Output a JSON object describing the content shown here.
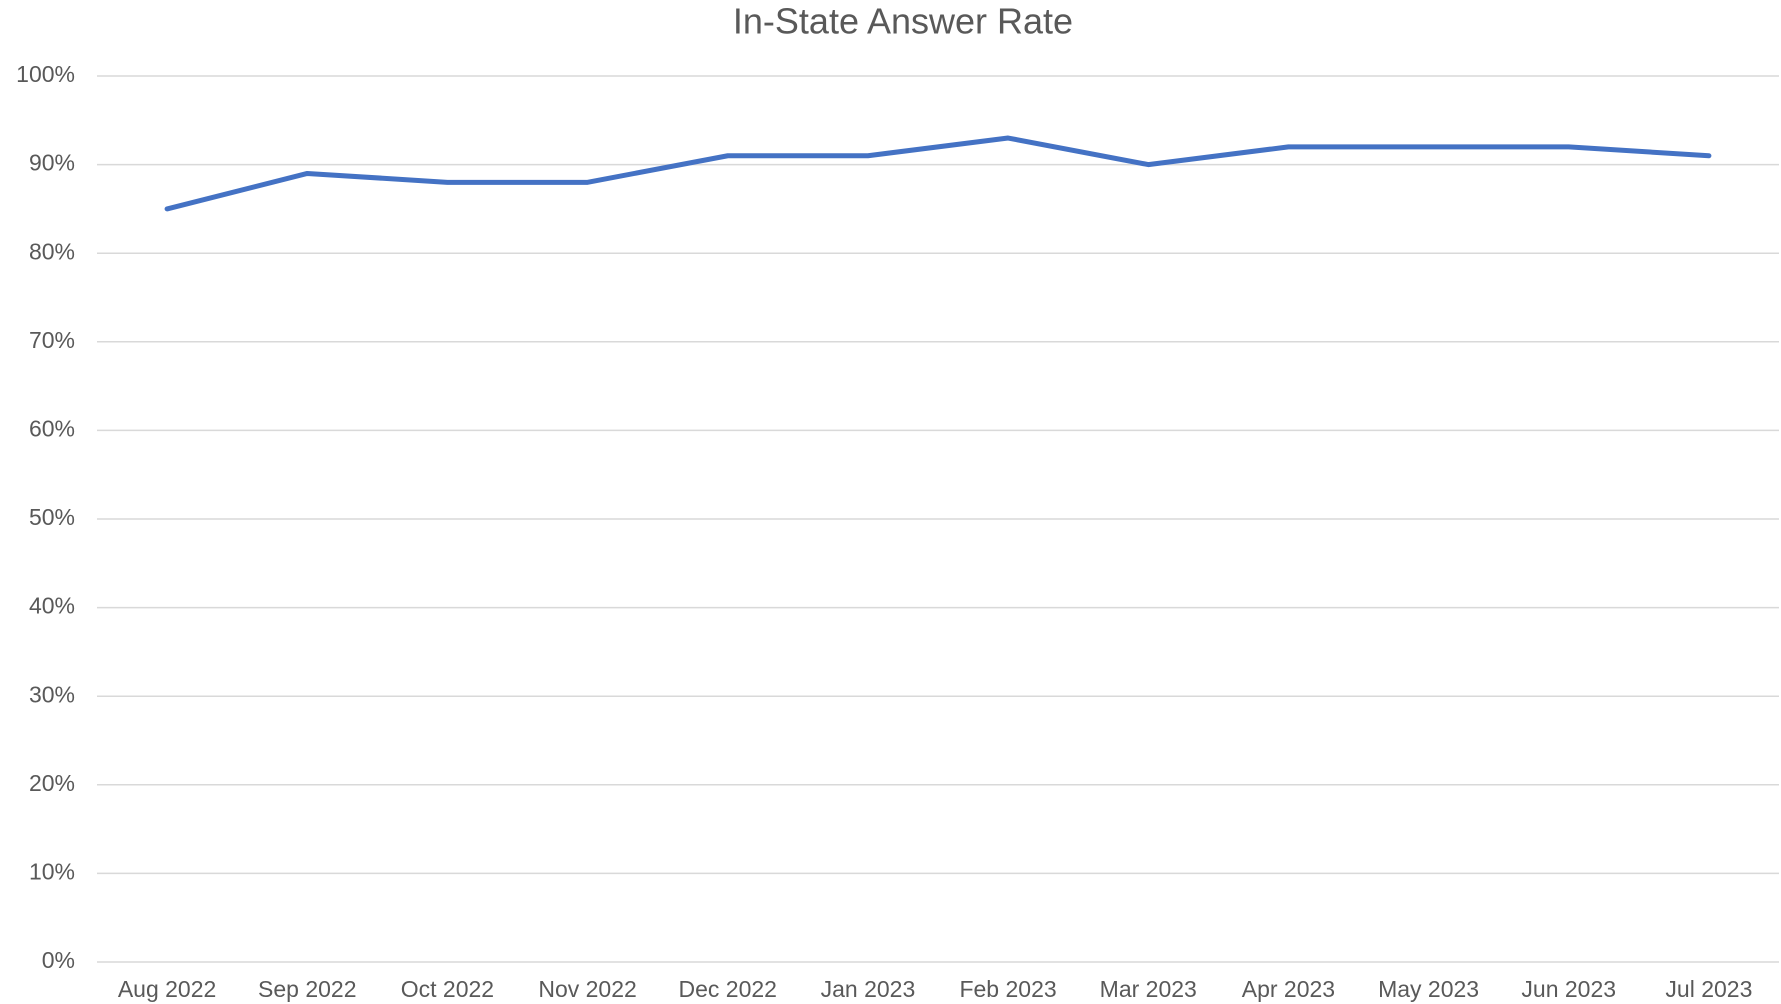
{
  "chart_data": {
    "type": "line",
    "title": "In-State Answer Rate",
    "categories": [
      "Aug 2022",
      "Sep 2022",
      "Oct 2022",
      "Nov 2022",
      "Dec 2022",
      "Jan 2023",
      "Feb 2023",
      "Mar 2023",
      "Apr 2023",
      "May 2023",
      "Jun 2023",
      "Jul 2023"
    ],
    "series": [
      {
        "name": "In-State Answer Rate",
        "color": "#4472c4",
        "values": [
          85,
          89,
          88,
          88,
          91,
          91,
          93,
          90,
          92,
          92,
          92,
          91
        ]
      }
    ],
    "ylim": [
      0,
      100
    ],
    "yticks": [
      {
        "value": 0,
        "label": "0%"
      },
      {
        "value": 10,
        "label": "10%"
      },
      {
        "value": 20,
        "label": "20%"
      },
      {
        "value": 30,
        "label": "30%"
      },
      {
        "value": 40,
        "label": "40%"
      },
      {
        "value": 50,
        "label": "50%"
      },
      {
        "value": 60,
        "label": "60%"
      },
      {
        "value": 70,
        "label": "70%"
      },
      {
        "value": 80,
        "label": "80%"
      },
      {
        "value": 90,
        "label": "90%"
      },
      {
        "value": 100,
        "label": "100%"
      }
    ],
    "grid": true
  }
}
